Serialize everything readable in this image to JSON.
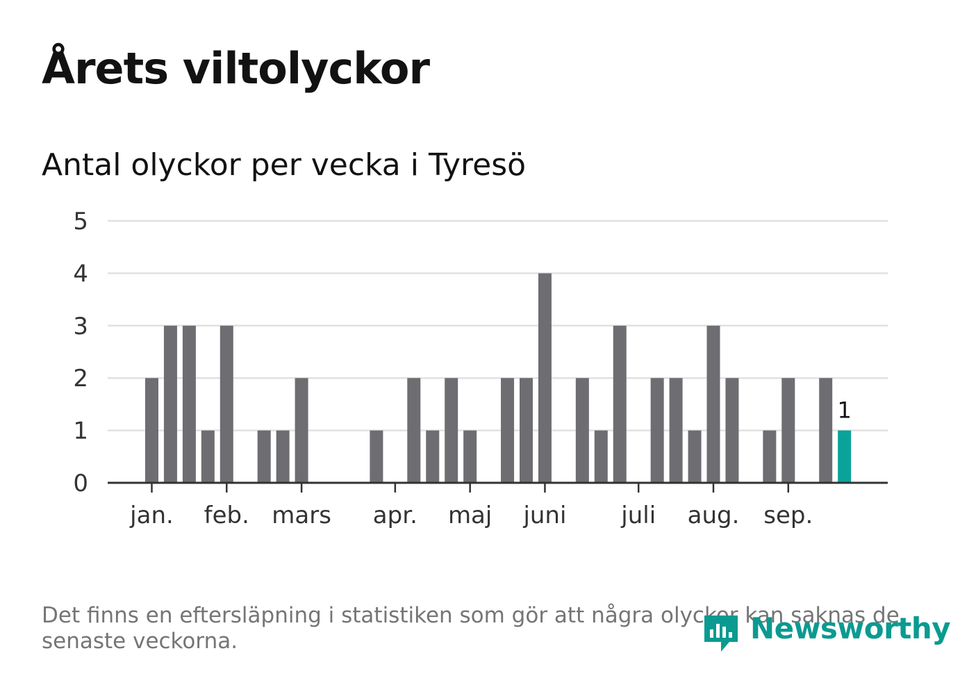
{
  "title": "Årets viltolyckor",
  "subtitle": "Antal olyckor per vecka i Tyresö",
  "note": "Det finns en eftersläpning i statistiken som gör att några olyckor kan saknas de senaste veckorna.",
  "brand": "Newsworthy",
  "colors": {
    "bar": "#6e6d72",
    "highlight": "#0aa39a",
    "grid": "#e1e1e1",
    "axis": "#333333",
    "brand": "#0a9a91"
  },
  "chart_data": {
    "type": "bar",
    "title": "Antal olyckor per vecka i Tyresö",
    "xlabel": "",
    "ylabel": "",
    "ylim": [
      0,
      5
    ],
    "yticks": [
      "0",
      "1",
      "2",
      "3",
      "4",
      "5"
    ],
    "weeks": [
      1,
      2,
      3,
      4,
      5,
      6,
      7,
      8,
      9,
      10,
      11,
      12,
      13,
      14,
      15,
      16,
      17,
      18,
      19,
      20,
      21,
      22,
      23,
      24,
      25,
      26,
      27,
      28,
      29,
      30,
      31,
      32,
      33,
      34,
      35,
      36,
      37,
      38
    ],
    "values": [
      2,
      3,
      3,
      1,
      3,
      0,
      1,
      1,
      2,
      0,
      0,
      0,
      1,
      0,
      2,
      1,
      2,
      1,
      0,
      2,
      2,
      4,
      0,
      2,
      1,
      3,
      0,
      2,
      2,
      1,
      3,
      2,
      0,
      1,
      2,
      0,
      2,
      1
    ],
    "month_ticks": [
      {
        "label": "jan.",
        "week": 1
      },
      {
        "label": "feb.",
        "week": 5
      },
      {
        "label": "mars",
        "week": 9
      },
      {
        "label": "apr.",
        "week": 14
      },
      {
        "label": "maj",
        "week": 18
      },
      {
        "label": "juni",
        "week": 22
      },
      {
        "label": "juli",
        "week": 27
      },
      {
        "label": "aug.",
        "week": 31
      },
      {
        "label": "sep.",
        "week": 35
      }
    ],
    "highlight_index": 37,
    "highlight_label": "1",
    "grid": true
  }
}
